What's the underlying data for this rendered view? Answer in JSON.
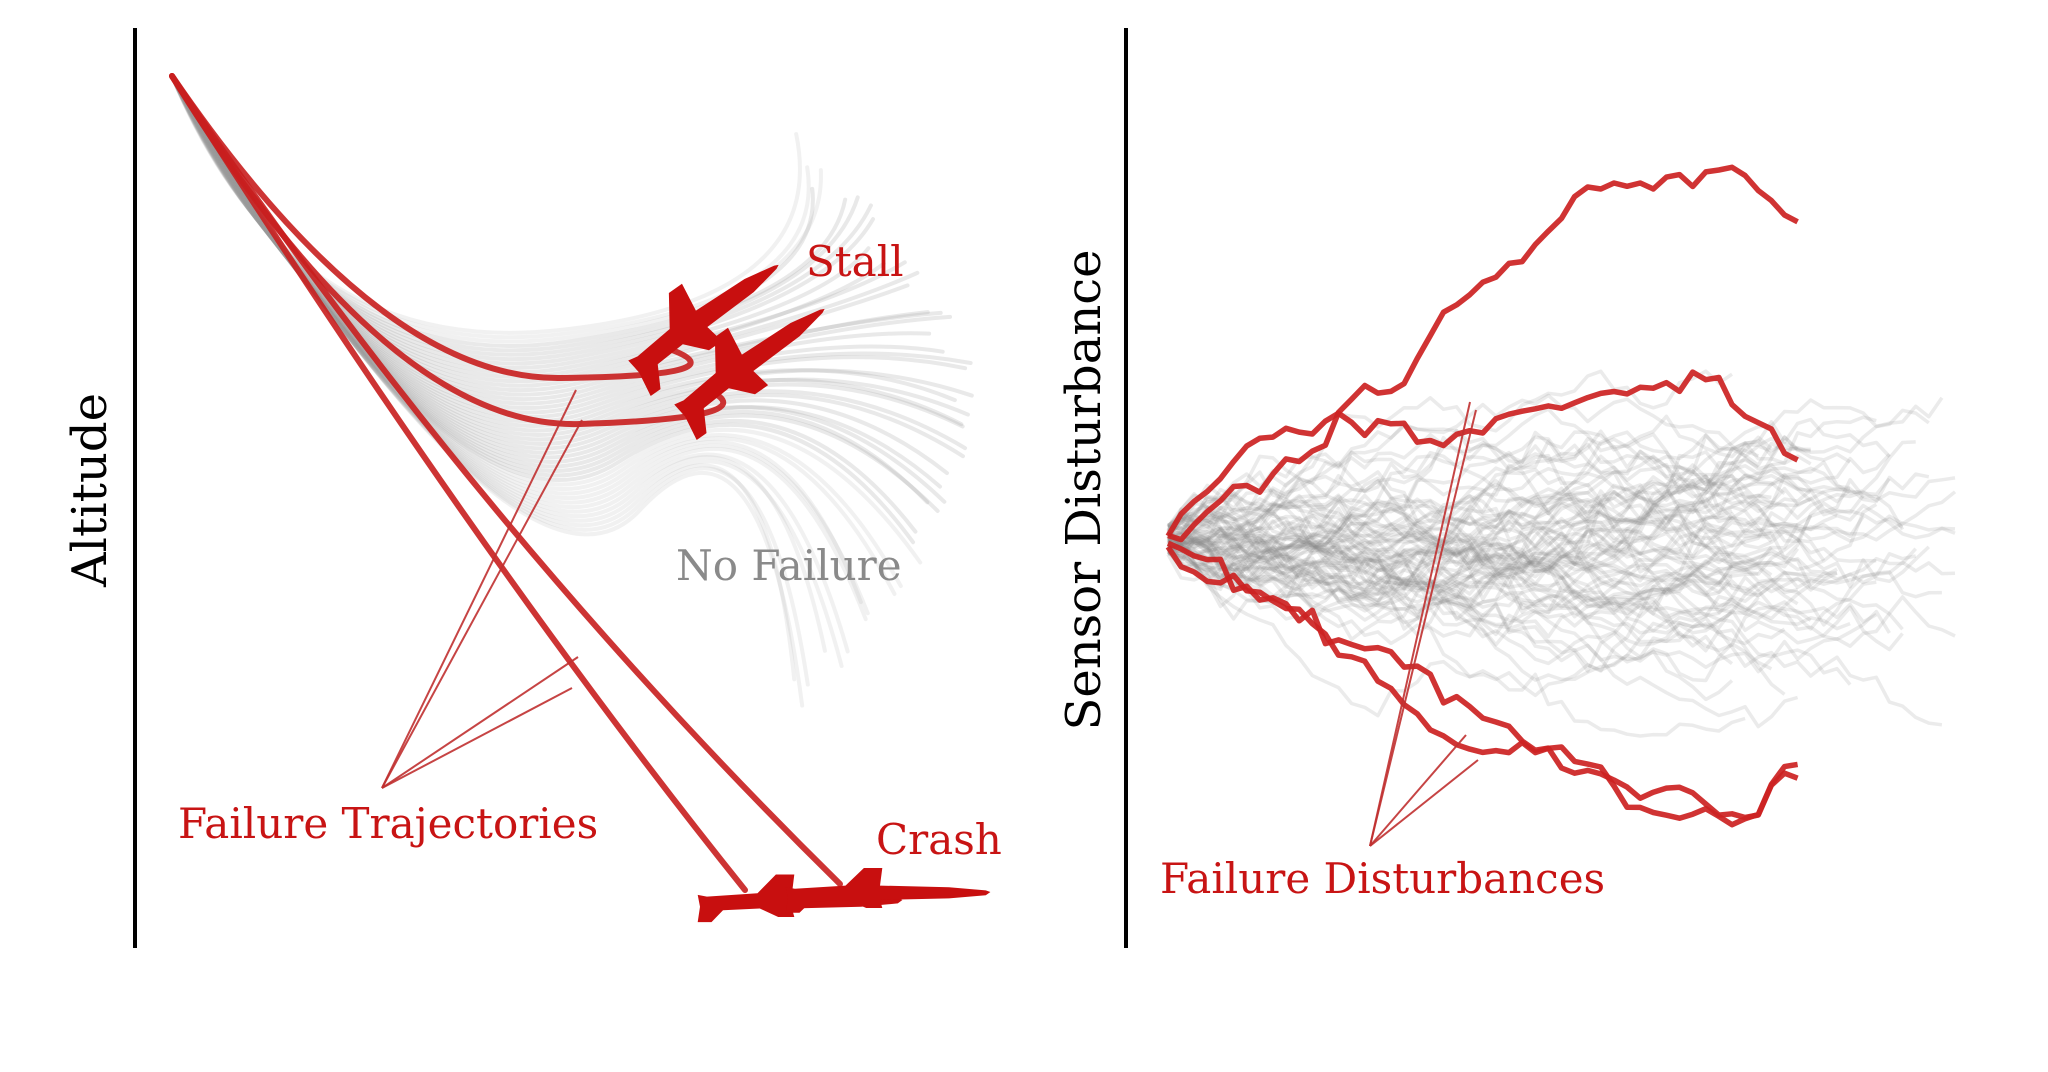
{
  "left_panel": {
    "axis_label": "Altitude",
    "labels": {
      "stall": "Stall",
      "no_failure": "No Failure",
      "failure_trajectories": "Failure Trajectories",
      "crash": "Crash"
    }
  },
  "right_panel": {
    "axis_label": "Sensor Disturbance",
    "labels": {
      "failure_disturbances": "Failure Disturbances"
    }
  },
  "colors": {
    "failure": "#c81e1e",
    "nominal": "#9a9a9a",
    "axis": "#000000"
  },
  "icons": [
    "jet-aircraft-icon"
  ]
}
